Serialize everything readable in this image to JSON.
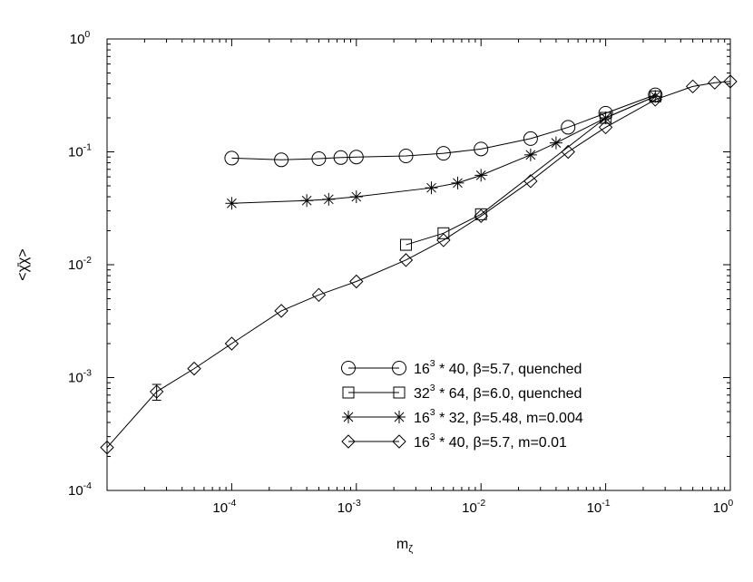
{
  "chart_data": {
    "type": "scatter",
    "title": "",
    "xlabel": {
      "base": "m",
      "sub": "ζ"
    },
    "ylabel": "<χ̄χ>",
    "x_scale": "log",
    "y_scale": "log",
    "xlim": [
      1e-05,
      1
    ],
    "ylim": [
      0.0001,
      1
    ],
    "x_ticks": [
      {
        "value": 0.0001,
        "base": "10",
        "exp": "-4"
      },
      {
        "value": 0.001,
        "base": "10",
        "exp": "-3"
      },
      {
        "value": 0.01,
        "base": "10",
        "exp": "-2"
      },
      {
        "value": 0.1,
        "base": "10",
        "exp": "-1"
      },
      {
        "value": 1,
        "base": "10",
        "exp": "0"
      }
    ],
    "y_ticks": [
      {
        "value": 0.0001,
        "base": "10",
        "exp": "-4"
      },
      {
        "value": 0.001,
        "base": "10",
        "exp": "-3"
      },
      {
        "value": 0.01,
        "base": "10",
        "exp": "-2"
      },
      {
        "value": 0.1,
        "base": "10",
        "exp": "-1"
      },
      {
        "value": 1,
        "base": "10",
        "exp": "0"
      }
    ],
    "grid": false,
    "legend_position": "bottom-right",
    "series": [
      {
        "name": "16³ * 40, β=5.7, quenched",
        "legend": {
          "n": "16",
          "exp": "3",
          "rest": " * 40, β=5.7,  quenched"
        },
        "marker": "circle",
        "connected": true,
        "points": [
          {
            "x": 0.0001,
            "y": 0.088
          },
          {
            "x": 0.00025,
            "y": 0.085
          },
          {
            "x": 0.0005,
            "y": 0.087
          },
          {
            "x": 0.00075,
            "y": 0.089
          },
          {
            "x": 0.001,
            "y": 0.09
          },
          {
            "x": 0.0025,
            "y": 0.092
          },
          {
            "x": 0.005,
            "y": 0.097
          },
          {
            "x": 0.01,
            "y": 0.106
          },
          {
            "x": 0.025,
            "y": 0.131
          },
          {
            "x": 0.05,
            "y": 0.165
          },
          {
            "x": 0.1,
            "y": 0.22
          },
          {
            "x": 0.25,
            "y": 0.32
          }
        ]
      },
      {
        "name": "32³ * 64, β=6.0, quenched",
        "legend": {
          "n": "32",
          "exp": "3",
          "rest": " * 64, β=6.0,  quenched"
        },
        "marker": "square",
        "connected": true,
        "points": [
          {
            "x": 0.0025,
            "y": 0.015
          },
          {
            "x": 0.005,
            "y": 0.019
          },
          {
            "x": 0.01,
            "y": 0.028
          },
          {
            "x": 0.1,
            "y": 0.2
          },
          {
            "x": 0.25,
            "y": 0.31
          }
        ]
      },
      {
        "name": "16³ * 32, β=5.48, m=0.004",
        "legend": {
          "n": "16",
          "exp": "3",
          "rest": " * 32, β=5.48, m=0.004"
        },
        "marker": "star",
        "connected": true,
        "points": [
          {
            "x": 0.0001,
            "y": 0.035
          },
          {
            "x": 0.0004,
            "y": 0.037
          },
          {
            "x": 0.0006,
            "y": 0.038
          },
          {
            "x": 0.001,
            "y": 0.04
          },
          {
            "x": 0.004,
            "y": 0.048
          },
          {
            "x": 0.0065,
            "y": 0.053
          },
          {
            "x": 0.01,
            "y": 0.062
          },
          {
            "x": 0.025,
            "y": 0.094
          },
          {
            "x": 0.04,
            "y": 0.12
          },
          {
            "x": 0.1,
            "y": 0.2
          },
          {
            "x": 0.25,
            "y": 0.31
          }
        ]
      },
      {
        "name": "16³ * 40, β=5.7, m=0.01",
        "legend": {
          "n": "16",
          "exp": "3",
          "rest": " * 40, β=5.7,  m=0.01"
        },
        "marker": "diamond",
        "connected": true,
        "points": [
          {
            "x": 1e-05,
            "y": 0.00024
          },
          {
            "x": 2.5e-05,
            "y": 0.00075,
            "err": 0.00012
          },
          {
            "x": 5e-05,
            "y": 0.0012
          },
          {
            "x": 0.0001,
            "y": 0.002
          },
          {
            "x": 0.00025,
            "y": 0.0039
          },
          {
            "x": 0.0005,
            "y": 0.0054
          },
          {
            "x": 0.001,
            "y": 0.0071
          },
          {
            "x": 0.0025,
            "y": 0.011
          },
          {
            "x": 0.005,
            "y": 0.0165
          },
          {
            "x": 0.01,
            "y": 0.027
          },
          {
            "x": 0.025,
            "y": 0.055
          },
          {
            "x": 0.05,
            "y": 0.1
          },
          {
            "x": 0.1,
            "y": 0.165
          },
          {
            "x": 0.25,
            "y": 0.29
          },
          {
            "x": 0.5,
            "y": 0.38
          },
          {
            "x": 0.75,
            "y": 0.41
          },
          {
            "x": 1.0,
            "y": 0.42
          }
        ]
      }
    ]
  }
}
